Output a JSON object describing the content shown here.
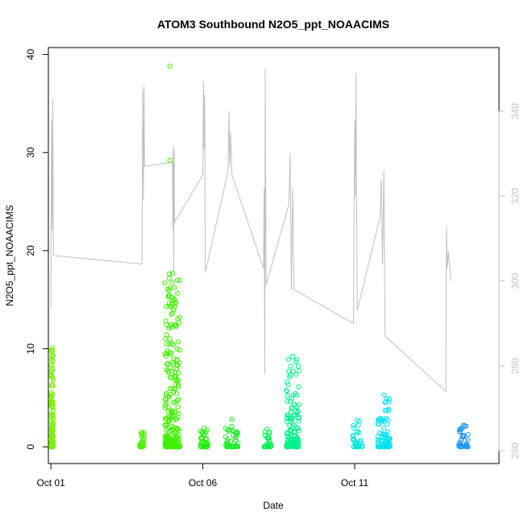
{
  "chart_data": {
    "type": "scatter",
    "title": "ATOM3 Southbound N2O5_ppt_NOAACIMS",
    "xlabel": "Date",
    "ylabel": "N2O5_ppt_NOAACIMS",
    "xlim": [
      "2017-09-30T22:00",
      "2017-10-15T18:00"
    ],
    "ylim": [
      -1.7,
      40.7
    ],
    "y2lim": [
      257,
      355
    ],
    "x_ticks": [
      {
        "date": "2017-10-01",
        "label": "Oct 01"
      },
      {
        "date": "2017-10-06",
        "label": "Oct 06"
      },
      {
        "date": "2017-10-11",
        "label": "Oct 11"
      }
    ],
    "y_ticks": [
      0,
      10,
      20,
      30,
      40
    ],
    "y2_ticks": [
      260,
      280,
      300,
      320,
      340
    ],
    "grid": false,
    "colors": {
      "axis": "#000000",
      "right_axis": "#c0c0c0",
      "secondary_line": "#c0c0c0"
    },
    "series": [
      {
        "axis": "left",
        "mark": "circle",
        "flights": [
          {
            "start": "2017-10-01T00:00",
            "end": "2017-10-01T02:00",
            "max": 10.1,
            "color": "#7cf000"
          },
          {
            "start": "2017-10-03T22:00",
            "end": "2017-10-04T02:00",
            "max": 1.5,
            "color": "#4df000"
          },
          {
            "start": "2017-10-04T18:00",
            "end": "2017-10-05T06:00",
            "max": 17.7,
            "color": "#3ff000",
            "outliers": [
              [
                "2017-10-04T22:00",
                38.8
              ],
              [
                "2017-10-04T22:00",
                29.2
              ],
              [
                "2017-10-04T22:00",
                16.2
              ],
              [
                "2017-10-04T22:00",
                12.3
              ],
              [
                "2017-10-04T22:00",
                11.0
              ]
            ]
          },
          {
            "start": "2017-10-05T22:00",
            "end": "2017-10-06T04:00",
            "max": 1.9,
            "color": "#1ef000"
          },
          {
            "start": "2017-10-06T18:00",
            "end": "2017-10-07T04:00",
            "max": 2.8,
            "color": "#12f01e"
          },
          {
            "start": "2017-10-08T00:00",
            "end": "2017-10-08T06:00",
            "max": 1.8,
            "color": "#00f050"
          },
          {
            "start": "2017-10-08T18:00",
            "end": "2017-10-09T04:00",
            "max": 9.2,
            "color": "#00f08a"
          },
          {
            "start": "2017-10-10T22:00",
            "end": "2017-10-11T06:00",
            "max": 2.7,
            "color": "#00e8d8"
          },
          {
            "start": "2017-10-11T18:00",
            "end": "2017-10-12T04:00",
            "max": 5.3,
            "color": "#00e0f0"
          },
          {
            "start": "2017-10-14T10:00",
            "end": "2017-10-14T18:00",
            "max": 2.2,
            "color": "#1e96f0"
          }
        ]
      },
      {
        "axis": "right",
        "mark": "line",
        "points": [
          [
            "2017-10-01T00:00",
            294
          ],
          [
            "2017-10-01T00:30",
            338
          ],
          [
            "2017-10-01T01:00",
            312
          ],
          [
            "2017-10-01T01:30",
            343
          ],
          [
            "2017-10-01T02:00",
            306
          ],
          [
            "2017-10-04T00:00",
            304
          ],
          [
            "2017-10-04T00:30",
            345
          ],
          [
            "2017-10-04T01:00",
            319
          ],
          [
            "2017-10-04T01:30",
            346
          ],
          [
            "2017-10-04T02:00",
            327
          ],
          [
            "2017-10-05T00:00",
            328
          ],
          [
            "2017-10-05T00:20",
            312
          ],
          [
            "2017-10-05T00:40",
            332
          ],
          [
            "2017-10-05T01:00",
            302
          ],
          [
            "2017-10-05T01:20",
            331
          ],
          [
            "2017-10-05T01:40",
            315
          ],
          [
            "2017-10-05T02:00",
            314
          ],
          [
            "2017-10-06T00:00",
            325
          ],
          [
            "2017-10-06T00:30",
            347
          ],
          [
            "2017-10-06T01:00",
            331
          ],
          [
            "2017-10-06T01:30",
            344
          ],
          [
            "2017-10-06T02:00",
            302
          ],
          [
            "2017-10-06T20:00",
            326
          ],
          [
            "2017-10-06T20:40",
            340
          ],
          [
            "2017-10-06T21:20",
            327
          ],
          [
            "2017-10-06T22:00",
            335
          ],
          [
            "2017-10-06T23:00",
            325
          ],
          [
            "2017-10-08T00:00",
            303
          ],
          [
            "2017-10-08T00:30",
            322
          ],
          [
            "2017-10-08T01:00",
            278
          ],
          [
            "2017-10-08T01:20",
            350
          ],
          [
            "2017-10-08T02:00",
            299
          ],
          [
            "2017-10-08T20:00",
            318
          ],
          [
            "2017-10-08T21:00",
            330
          ],
          [
            "2017-10-08T22:00",
            298
          ],
          [
            "2017-10-08T23:00",
            322
          ],
          [
            "2017-10-09T00:00",
            298
          ],
          [
            "2017-10-10T23:00",
            290
          ],
          [
            "2017-10-11T00:00",
            338
          ],
          [
            "2017-10-11T00:30",
            320
          ],
          [
            "2017-10-11T01:00",
            349
          ],
          [
            "2017-10-11T02:00",
            293
          ],
          [
            "2017-10-11T20:00",
            315
          ],
          [
            "2017-10-11T21:00",
            324
          ],
          [
            "2017-10-11T22:00",
            304
          ],
          [
            "2017-10-11T23:00",
            326
          ],
          [
            "2017-10-12T00:00",
            287
          ],
          [
            "2017-10-14T00:00",
            274
          ],
          [
            "2017-10-14T00:30",
            313
          ],
          [
            "2017-10-14T01:00",
            303
          ],
          [
            "2017-10-14T02:00",
            307
          ],
          [
            "2017-10-14T04:00",
            300
          ]
        ]
      }
    ]
  }
}
